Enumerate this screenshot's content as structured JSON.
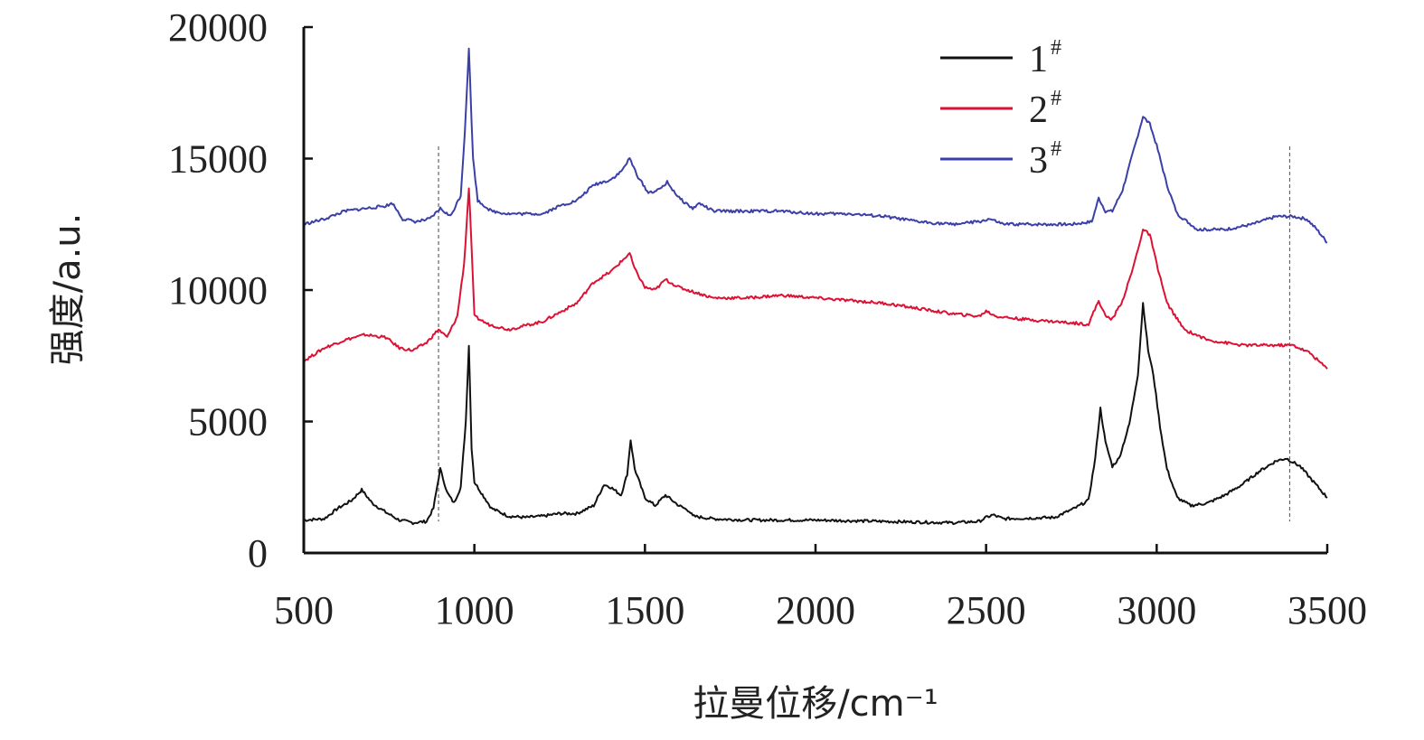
{
  "chart_data": {
    "type": "line",
    "xlabel": "拉曼位移/cm⁻¹",
    "ylabel": "强度/a.u.",
    "xlim": [
      500,
      3500
    ],
    "ylim": [
      0,
      20000
    ],
    "x_ticks": [
      500,
      1000,
      1500,
      2000,
      2500,
      3000,
      3500
    ],
    "y_ticks": [
      0,
      5000,
      10000,
      15000,
      20000
    ],
    "grid": false,
    "legend_position": "top-right",
    "reference_lines_x": [
      895,
      3390
    ],
    "series": [
      {
        "name": "1",
        "legend_sup": "#",
        "color": "#111111",
        "points": [
          [
            500,
            1250
          ],
          [
            560,
            1300
          ],
          [
            600,
            1700
          ],
          [
            640,
            2000
          ],
          [
            670,
            2400
          ],
          [
            700,
            1900
          ],
          [
            740,
            1550
          ],
          [
            780,
            1250
          ],
          [
            820,
            1150
          ],
          [
            860,
            1200
          ],
          [
            880,
            1700
          ],
          [
            900,
            3200
          ],
          [
            920,
            2300
          ],
          [
            940,
            1900
          ],
          [
            960,
            2500
          ],
          [
            975,
            5000
          ],
          [
            984,
            7900
          ],
          [
            992,
            4000
          ],
          [
            1000,
            2700
          ],
          [
            1020,
            2300
          ],
          [
            1050,
            1700
          ],
          [
            1100,
            1400
          ],
          [
            1150,
            1350
          ],
          [
            1200,
            1400
          ],
          [
            1250,
            1500
          ],
          [
            1300,
            1500
          ],
          [
            1350,
            1800
          ],
          [
            1380,
            2600
          ],
          [
            1400,
            2500
          ],
          [
            1430,
            2200
          ],
          [
            1448,
            3000
          ],
          [
            1458,
            4300
          ],
          [
            1470,
            3200
          ],
          [
            1500,
            2100
          ],
          [
            1530,
            1800
          ],
          [
            1560,
            2200
          ],
          [
            1600,
            1800
          ],
          [
            1630,
            1600
          ],
          [
            1640,
            1400
          ],
          [
            1700,
            1300
          ],
          [
            1800,
            1250
          ],
          [
            2000,
            1250
          ],
          [
            2200,
            1200
          ],
          [
            2400,
            1150
          ],
          [
            2480,
            1200
          ],
          [
            2500,
            1350
          ],
          [
            2520,
            1450
          ],
          [
            2550,
            1300
          ],
          [
            2700,
            1350
          ],
          [
            2760,
            1700
          ],
          [
            2800,
            2000
          ],
          [
            2820,
            3600
          ],
          [
            2835,
            5500
          ],
          [
            2850,
            4200
          ],
          [
            2870,
            3300
          ],
          [
            2890,
            3600
          ],
          [
            2920,
            4900
          ],
          [
            2945,
            6800
          ],
          [
            2960,
            9500
          ],
          [
            2975,
            7700
          ],
          [
            2990,
            6800
          ],
          [
            3010,
            4800
          ],
          [
            3030,
            3200
          ],
          [
            3060,
            2100
          ],
          [
            3100,
            1800
          ],
          [
            3150,
            1900
          ],
          [
            3200,
            2200
          ],
          [
            3250,
            2600
          ],
          [
            3300,
            3100
          ],
          [
            3350,
            3500
          ],
          [
            3380,
            3600
          ],
          [
            3420,
            3300
          ],
          [
            3460,
            2700
          ],
          [
            3500,
            2100
          ]
        ]
      },
      {
        "name": "2",
        "legend_sup": "#",
        "color": "#dd1133",
        "points": [
          [
            500,
            7300
          ],
          [
            560,
            7800
          ],
          [
            620,
            8100
          ],
          [
            680,
            8300
          ],
          [
            740,
            8200
          ],
          [
            780,
            7800
          ],
          [
            820,
            7700
          ],
          [
            860,
            8000
          ],
          [
            895,
            8500
          ],
          [
            920,
            8200
          ],
          [
            950,
            9000
          ],
          [
            970,
            11000
          ],
          [
            984,
            13900
          ],
          [
            994,
            11000
          ],
          [
            1000,
            9000
          ],
          [
            1040,
            8700
          ],
          [
            1100,
            8500
          ],
          [
            1200,
            8800
          ],
          [
            1300,
            9500
          ],
          [
            1350,
            10300
          ],
          [
            1400,
            10700
          ],
          [
            1440,
            11200
          ],
          [
            1455,
            11400
          ],
          [
            1470,
            10800
          ],
          [
            1500,
            10100
          ],
          [
            1530,
            10000
          ],
          [
            1560,
            10400
          ],
          [
            1600,
            10100
          ],
          [
            1650,
            9900
          ],
          [
            1700,
            9700
          ],
          [
            1800,
            9700
          ],
          [
            1900,
            9800
          ],
          [
            2000,
            9700
          ],
          [
            2100,
            9600
          ],
          [
            2200,
            9500
          ],
          [
            2300,
            9300
          ],
          [
            2400,
            9100
          ],
          [
            2480,
            9000
          ],
          [
            2500,
            9200
          ],
          [
            2530,
            9000
          ],
          [
            2600,
            8900
          ],
          [
            2700,
            8800
          ],
          [
            2800,
            8700
          ],
          [
            2830,
            9600
          ],
          [
            2850,
            9000
          ],
          [
            2870,
            8900
          ],
          [
            2900,
            9600
          ],
          [
            2930,
            10800
          ],
          [
            2960,
            12300
          ],
          [
            2980,
            12100
          ],
          [
            3000,
            11000
          ],
          [
            3030,
            9500
          ],
          [
            3080,
            8500
          ],
          [
            3150,
            8100
          ],
          [
            3250,
            7900
          ],
          [
            3350,
            7900
          ],
          [
            3400,
            7900
          ],
          [
            3450,
            7600
          ],
          [
            3500,
            7000
          ]
        ]
      },
      {
        "name": "3",
        "legend_sup": "#",
        "color": "#3b3fa8",
        "points": [
          [
            500,
            12500
          ],
          [
            560,
            12700
          ],
          [
            620,
            13000
          ],
          [
            680,
            13100
          ],
          [
            740,
            13200
          ],
          [
            760,
            13300
          ],
          [
            790,
            12700
          ],
          [
            830,
            12600
          ],
          [
            870,
            12700
          ],
          [
            900,
            13100
          ],
          [
            930,
            12800
          ],
          [
            960,
            13600
          ],
          [
            972,
            16000
          ],
          [
            984,
            19200
          ],
          [
            996,
            15000
          ],
          [
            1010,
            13400
          ],
          [
            1050,
            13000
          ],
          [
            1100,
            12900
          ],
          [
            1200,
            12900
          ],
          [
            1250,
            13200
          ],
          [
            1300,
            13400
          ],
          [
            1350,
            14000
          ],
          [
            1400,
            14200
          ],
          [
            1430,
            14500
          ],
          [
            1455,
            15000
          ],
          [
            1480,
            14300
          ],
          [
            1510,
            13700
          ],
          [
            1540,
            13800
          ],
          [
            1565,
            14100
          ],
          [
            1600,
            13500
          ],
          [
            1640,
            13100
          ],
          [
            1660,
            13300
          ],
          [
            1700,
            13000
          ],
          [
            1800,
            13000
          ],
          [
            1900,
            13000
          ],
          [
            2000,
            12900
          ],
          [
            2100,
            12900
          ],
          [
            2200,
            12800
          ],
          [
            2300,
            12600
          ],
          [
            2400,
            12500
          ],
          [
            2480,
            12600
          ],
          [
            2510,
            12700
          ],
          [
            2550,
            12500
          ],
          [
            2650,
            12500
          ],
          [
            2750,
            12500
          ],
          [
            2810,
            12600
          ],
          [
            2830,
            13500
          ],
          [
            2850,
            13000
          ],
          [
            2870,
            13000
          ],
          [
            2900,
            13800
          ],
          [
            2930,
            15200
          ],
          [
            2960,
            16600
          ],
          [
            2980,
            16300
          ],
          [
            3000,
            15500
          ],
          [
            3030,
            14000
          ],
          [
            3060,
            12900
          ],
          [
            3120,
            12300
          ],
          [
            3200,
            12300
          ],
          [
            3280,
            12500
          ],
          [
            3350,
            12800
          ],
          [
            3400,
            12800
          ],
          [
            3440,
            12700
          ],
          [
            3470,
            12300
          ],
          [
            3500,
            11800
          ]
        ]
      }
    ]
  }
}
